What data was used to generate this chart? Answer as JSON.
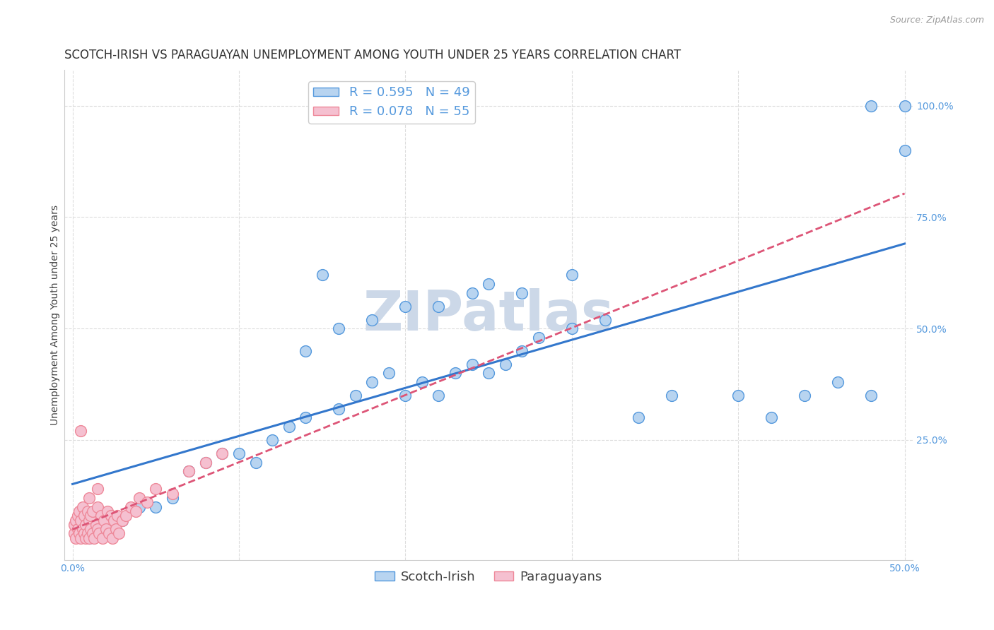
{
  "title": "SCOTCH-IRISH VS PARAGUAYAN UNEMPLOYMENT AMONG YOUTH UNDER 25 YEARS CORRELATION CHART",
  "source": "Source: ZipAtlas.com",
  "ylabel": "Unemployment Among Youth under 25 years",
  "xlim": [
    -0.005,
    0.505
  ],
  "ylim": [
    -0.02,
    1.08
  ],
  "xticks": [
    0.0,
    0.5
  ],
  "yticks": [
    0.25,
    0.5,
    0.75,
    1.0
  ],
  "xticklabels": [
    "0.0%",
    "50.0%"
  ],
  "yticklabels": [
    "25.0%",
    "50.0%",
    "75.0%",
    "100.0%"
  ],
  "scotch_irish_R": 0.595,
  "scotch_irish_N": 49,
  "paraguayan_R": 0.078,
  "paraguayan_N": 55,
  "scotch_irish_color": "#b8d4f0",
  "scotch_irish_edge_color": "#5599dd",
  "scotch_irish_line_color": "#3377cc",
  "paraguayan_color": "#f5c0d0",
  "paraguayan_edge_color": "#ee8899",
  "paraguayan_line_color": "#dd5577",
  "tick_label_color": "#5599dd",
  "watermark": "ZIPatlas",
  "watermark_color": "#ccd8e8",
  "scotch_irish_x": [
    0.01,
    0.02,
    0.03,
    0.04,
    0.05,
    0.06,
    0.07,
    0.08,
    0.09,
    0.1,
    0.11,
    0.12,
    0.13,
    0.14,
    0.15,
    0.16,
    0.17,
    0.18,
    0.19,
    0.2,
    0.21,
    0.22,
    0.23,
    0.24,
    0.25,
    0.26,
    0.27,
    0.28,
    0.3,
    0.32,
    0.14,
    0.16,
    0.18,
    0.2,
    0.22,
    0.24,
    0.25,
    0.27,
    0.3,
    0.34,
    0.36,
    0.4,
    0.42,
    0.44,
    0.46,
    0.48,
    0.48,
    0.5,
    0.5
  ],
  "scotch_irish_y": [
    0.03,
    0.05,
    0.07,
    0.1,
    0.1,
    0.12,
    0.18,
    0.2,
    0.22,
    0.22,
    0.2,
    0.25,
    0.28,
    0.3,
    0.62,
    0.32,
    0.35,
    0.38,
    0.4,
    0.35,
    0.38,
    0.35,
    0.4,
    0.42,
    0.4,
    0.42,
    0.45,
    0.48,
    0.5,
    0.52,
    0.45,
    0.5,
    0.52,
    0.55,
    0.55,
    0.58,
    0.6,
    0.58,
    0.62,
    0.3,
    0.35,
    0.35,
    0.3,
    0.35,
    0.38,
    0.35,
    1.0,
    1.0,
    0.9
  ],
  "paraguayan_x": [
    0.001,
    0.001,
    0.002,
    0.002,
    0.003,
    0.003,
    0.004,
    0.004,
    0.005,
    0.005,
    0.006,
    0.006,
    0.007,
    0.007,
    0.008,
    0.008,
    0.009,
    0.009,
    0.01,
    0.01,
    0.011,
    0.011,
    0.012,
    0.012,
    0.013,
    0.014,
    0.015,
    0.015,
    0.016,
    0.017,
    0.018,
    0.019,
    0.02,
    0.021,
    0.022,
    0.023,
    0.024,
    0.025,
    0.026,
    0.027,
    0.028,
    0.03,
    0.032,
    0.035,
    0.038,
    0.04,
    0.045,
    0.05,
    0.06,
    0.07,
    0.08,
    0.09,
    0.005,
    0.01,
    0.015
  ],
  "paraguayan_y": [
    0.04,
    0.06,
    0.03,
    0.07,
    0.05,
    0.08,
    0.04,
    0.09,
    0.03,
    0.07,
    0.05,
    0.1,
    0.04,
    0.08,
    0.03,
    0.06,
    0.04,
    0.09,
    0.03,
    0.07,
    0.05,
    0.08,
    0.04,
    0.09,
    0.03,
    0.06,
    0.05,
    0.1,
    0.04,
    0.08,
    0.03,
    0.07,
    0.05,
    0.09,
    0.04,
    0.08,
    0.03,
    0.07,
    0.05,
    0.08,
    0.04,
    0.07,
    0.08,
    0.1,
    0.09,
    0.12,
    0.11,
    0.14,
    0.13,
    0.18,
    0.2,
    0.22,
    0.27,
    0.12,
    0.14
  ],
  "background_color": "#ffffff",
  "grid_color": "#dddddd",
  "title_fontsize": 12,
  "axis_label_fontsize": 10,
  "tick_fontsize": 10,
  "legend_fontsize": 13
}
